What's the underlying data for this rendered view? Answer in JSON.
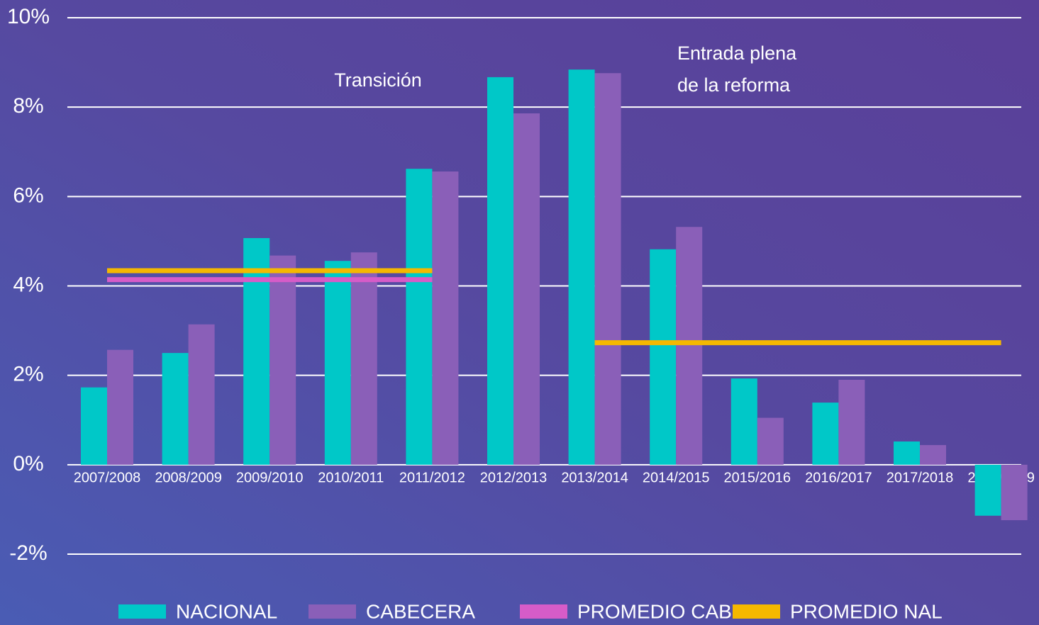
{
  "chart_data": {
    "type": "bar",
    "categories": [
      "2007/2008",
      "2008/2009",
      "2009/2010",
      "2010/2011",
      "2011/2012",
      "2012/2013",
      "2013/2014",
      "2014/2015",
      "2015/2016",
      "2016/2017",
      "2017/2018",
      "2018/2019"
    ],
    "series": [
      {
        "name": "NACIONAL",
        "type": "bar",
        "color": "#00c8c8",
        "values": [
          1.73,
          2.5,
          5.07,
          4.56,
          6.62,
          8.67,
          8.84,
          4.82,
          1.93,
          1.39,
          0.52,
          -1.14
        ]
      },
      {
        "name": "CABECERA",
        "type": "bar",
        "color": "#8a5fb8",
        "values": [
          2.57,
          3.14,
          4.68,
          4.75,
          6.56,
          7.86,
          8.76,
          5.32,
          1.05,
          1.9,
          0.44,
          -1.24
        ]
      },
      {
        "name": "PROMEDIO CAB",
        "type": "line",
        "color": "#d65cc8",
        "values": [
          4.14,
          4.14,
          4.14,
          4.14,
          4.14,
          null,
          null,
          null,
          null,
          null,
          null,
          null
        ]
      },
      {
        "name": "PROMEDIO NAL",
        "type": "line",
        "color": "#f5b800",
        "values": [
          4.34,
          4.34,
          4.34,
          4.34,
          4.34,
          null,
          2.73,
          2.73,
          2.73,
          2.73,
          2.73,
          2.73
        ]
      }
    ],
    "annotations": [
      "Transición",
      "Entrada plena",
      "de la reforma"
    ],
    "ylim": [
      -2,
      10
    ],
    "yticks": [
      {
        "value": -2,
        "label": "-2%"
      },
      {
        "value": 0,
        "label": "0%"
      },
      {
        "value": 2,
        "label": "2%"
      },
      {
        "value": 4,
        "label": "4%"
      },
      {
        "value": 6,
        "label": "6%"
      },
      {
        "value": 8,
        "label": "8%"
      },
      {
        "value": 10,
        "label": "10%"
      }
    ],
    "grid": true
  }
}
